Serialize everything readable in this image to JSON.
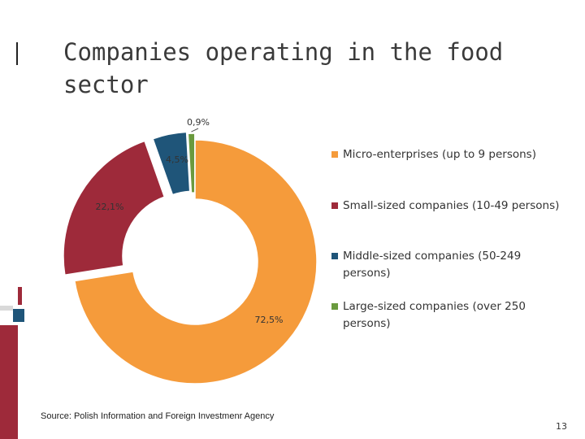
{
  "title": "Companies operating in the food sector",
  "source": "Source: Polish Information and Foreign Investmenr Agency",
  "page_number": "13",
  "colors": {
    "micro": "#F59B3B",
    "small": "#9E2A3A",
    "middle": "#1F5579",
    "large": "#6A9A3E",
    "decor_red": "#9E2A3A",
    "decor_blue": "#1F5579"
  },
  "chart_data": {
    "type": "pie",
    "style": "donut",
    "title": "",
    "legend_position": "right",
    "series": [
      {
        "name": "Micro-enterprises (up to 9 persons)",
        "value": 72.5,
        "label": "72,5%",
        "color": "#F59B3B"
      },
      {
        "name": "Small-sized companies (10-49 persons)",
        "value": 22.1,
        "label": "22,1%",
        "color": "#9E2A3A"
      },
      {
        "name": "Middle-sized companies (50-249 persons)",
        "value": 4.5,
        "label": "4,5%",
        "color": "#1F5579"
      },
      {
        "name": "Large-sized companies (over 250 persons)",
        "value": 0.9,
        "label": "0,9%",
        "color": "#6A9A3E"
      }
    ]
  }
}
